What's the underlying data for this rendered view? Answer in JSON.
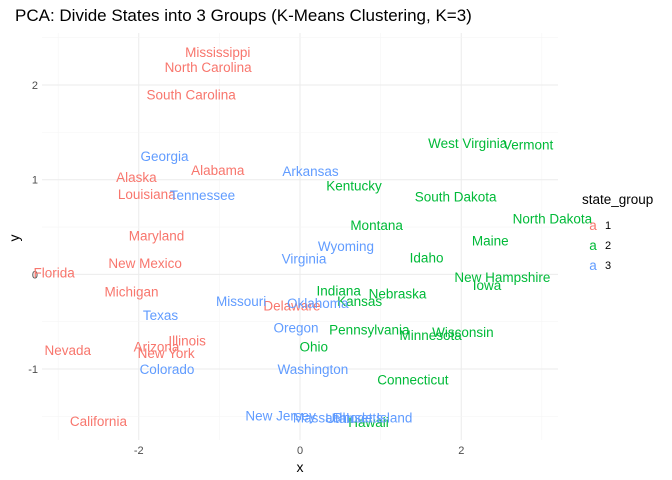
{
  "chart_data": {
    "type": "scatter",
    "title": "PCA: Divide States into 3 Groups (K-Means Clustering, K=3)",
    "xlabel": "x",
    "ylabel": "y",
    "xlim": [
      -3.2,
      3.2
    ],
    "ylim": [
      -1.75,
      2.55
    ],
    "x_ticks": [
      -2,
      0,
      2
    ],
    "y_ticks": [
      -1,
      0,
      1,
      2
    ],
    "grid": true,
    "legend": {
      "title": "state_group",
      "position": "right",
      "key_glyph": "a",
      "entries": [
        {
          "label": "1",
          "color": "#F8766D"
        },
        {
          "label": "2",
          "color": "#00BA38"
        },
        {
          "label": "3",
          "color": "#619CFF"
        }
      ]
    },
    "points": [
      {
        "label": "Mississippi",
        "x": -1.02,
        "y": 2.35,
        "group": "1"
      },
      {
        "label": "North Carolina",
        "x": -1.14,
        "y": 2.19,
        "group": "1"
      },
      {
        "label": "South Carolina",
        "x": -1.35,
        "y": 1.9,
        "group": "1"
      },
      {
        "label": "Alabama",
        "x": -1.02,
        "y": 1.1,
        "group": "1"
      },
      {
        "label": "Alaska",
        "x": -2.03,
        "y": 1.03,
        "group": "1"
      },
      {
        "label": "Louisiana",
        "x": -1.9,
        "y": 0.85,
        "group": "1"
      },
      {
        "label": "Maryland",
        "x": -1.78,
        "y": 0.41,
        "group": "1"
      },
      {
        "label": "New Mexico",
        "x": -1.92,
        "y": 0.12,
        "group": "1"
      },
      {
        "label": "Florida",
        "x": -3.05,
        "y": 0.02,
        "group": "1"
      },
      {
        "label": "Michigan",
        "x": -2.09,
        "y": -0.18,
        "group": "1"
      },
      {
        "label": "Delaware",
        "x": -0.1,
        "y": -0.33,
        "group": "1"
      },
      {
        "label": "Illinois",
        "x": -1.4,
        "y": -0.7,
        "group": "1"
      },
      {
        "label": "Arizona",
        "x": -1.78,
        "y": -0.76,
        "group": "1"
      },
      {
        "label": "New York",
        "x": -1.66,
        "y": -0.83,
        "group": "1"
      },
      {
        "label": "Nevada",
        "x": -2.88,
        "y": -0.8,
        "group": "1"
      },
      {
        "label": "California",
        "x": -2.5,
        "y": -1.55,
        "group": "1"
      },
      {
        "label": "West Virginia",
        "x": 2.08,
        "y": 1.39,
        "group": "2"
      },
      {
        "label": "Vermont",
        "x": 2.83,
        "y": 1.37,
        "group": "2"
      },
      {
        "label": "Kentucky",
        "x": 0.67,
        "y": 0.94,
        "group": "2"
      },
      {
        "label": "South Dakota",
        "x": 1.93,
        "y": 0.82,
        "group": "2"
      },
      {
        "label": "North Dakota",
        "x": 3.13,
        "y": 0.59,
        "group": "2"
      },
      {
        "label": "Montana",
        "x": 0.95,
        "y": 0.52,
        "group": "2"
      },
      {
        "label": "Maine",
        "x": 2.36,
        "y": 0.36,
        "group": "2"
      },
      {
        "label": "Idaho",
        "x": 1.57,
        "y": 0.18,
        "group": "2"
      },
      {
        "label": "New Hampshire",
        "x": 2.51,
        "y": -0.03,
        "group": "2"
      },
      {
        "label": "Iowa",
        "x": 2.32,
        "y": -0.11,
        "group": "2"
      },
      {
        "label": "Indiana",
        "x": 0.48,
        "y": -0.17,
        "group": "2"
      },
      {
        "label": "Nebraska",
        "x": 1.21,
        "y": -0.2,
        "group": "2"
      },
      {
        "label": "Kansas",
        "x": 0.74,
        "y": -0.28,
        "group": "2"
      },
      {
        "label": "Pennsylvania",
        "x": 0.86,
        "y": -0.58,
        "group": "2"
      },
      {
        "label": "Wisconsin",
        "x": 2.02,
        "y": -0.61,
        "group": "2"
      },
      {
        "label": "Minnesota",
        "x": 1.62,
        "y": -0.64,
        "group": "2"
      },
      {
        "label": "Ohio",
        "x": 0.17,
        "y": -0.76,
        "group": "2"
      },
      {
        "label": "Connecticut",
        "x": 1.4,
        "y": -1.11,
        "group": "2"
      },
      {
        "label": "Hawaii",
        "x": 0.85,
        "y": -1.56,
        "group": "2"
      },
      {
        "label": "Georgia",
        "x": -1.68,
        "y": 1.25,
        "group": "3"
      },
      {
        "label": "Arkansas",
        "x": 0.13,
        "y": 1.09,
        "group": "3"
      },
      {
        "label": "Tennessee",
        "x": -1.21,
        "y": 0.84,
        "group": "3"
      },
      {
        "label": "Wyoming",
        "x": 0.57,
        "y": 0.3,
        "group": "3"
      },
      {
        "label": "Virginia",
        "x": 0.05,
        "y": 0.17,
        "group": "3"
      },
      {
        "label": "Missouri",
        "x": -0.73,
        "y": -0.28,
        "group": "3"
      },
      {
        "label": "Oklahoma",
        "x": 0.22,
        "y": -0.3,
        "group": "3"
      },
      {
        "label": "Texas",
        "x": -1.73,
        "y": -0.43,
        "group": "3"
      },
      {
        "label": "Oregon",
        "x": -0.05,
        "y": -0.56,
        "group": "3"
      },
      {
        "label": "Washington",
        "x": 0.16,
        "y": -1.0,
        "group": "3"
      },
      {
        "label": "Colorado",
        "x": -1.65,
        "y": -1.0,
        "group": "3"
      },
      {
        "label": "New Jersey",
        "x": -0.24,
        "y": -1.49,
        "group": "3"
      },
      {
        "label": "Massachusetts",
        "x": 0.47,
        "y": -1.51,
        "group": "3"
      },
      {
        "label": "Rhode Island",
        "x": 0.9,
        "y": -1.51,
        "group": "3"
      },
      {
        "label": "Utah",
        "x": 0.49,
        "y": -1.52,
        "group": "3"
      }
    ]
  }
}
